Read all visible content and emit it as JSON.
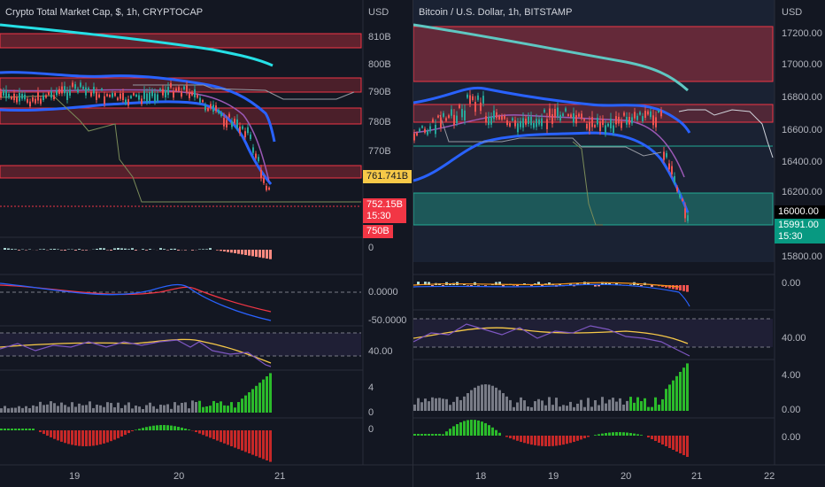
{
  "left": {
    "title": "Crypto Total Market Cap, $, 1h, CRYPTOCAP",
    "currency": "USD",
    "price_ticks": [
      "810B",
      "800B",
      "790B",
      "780B",
      "770B"
    ],
    "current_price": "761.741B",
    "last_price": "752.15B",
    "countdown": "15:30",
    "low_tag": "750B",
    "osc1_zero": "0",
    "osc2_ticks": [
      "0.0000",
      "-50.0000"
    ],
    "rsi_tick": "40.00",
    "vol_tick": "4",
    "vol_zero": "0",
    "bottom_zero": "0",
    "dates": [
      "19",
      "20",
      "21"
    ]
  },
  "right": {
    "title": "Bitcoin / U.S. Dollar, 1h, BITSTAMP",
    "currency": "USD",
    "price_ticks": [
      "17200.00",
      "17000.00",
      "16800.00",
      "16600.00",
      "16400.00",
      "16200.00",
      "15800.00"
    ],
    "level_tag": "16000.00",
    "last_price": "15991.00",
    "countdown": "15:30",
    "osc1_tick": "0.00",
    "rsi_tick": "40.00",
    "vol_ticks": [
      "4.00",
      "0.00"
    ],
    "bottom_tick": "0.00",
    "dates": [
      "18",
      "19",
      "20",
      "21",
      "22"
    ]
  },
  "colors": {
    "background": "#131722",
    "red_zone": "#f23645",
    "green_zone": "#22ab94",
    "ma_cyan": "#26e0e6",
    "band_blue": "#2962ff",
    "tag_yellow": "#f7c948",
    "tag_red": "#f23645",
    "tag_green": "#089981"
  }
}
